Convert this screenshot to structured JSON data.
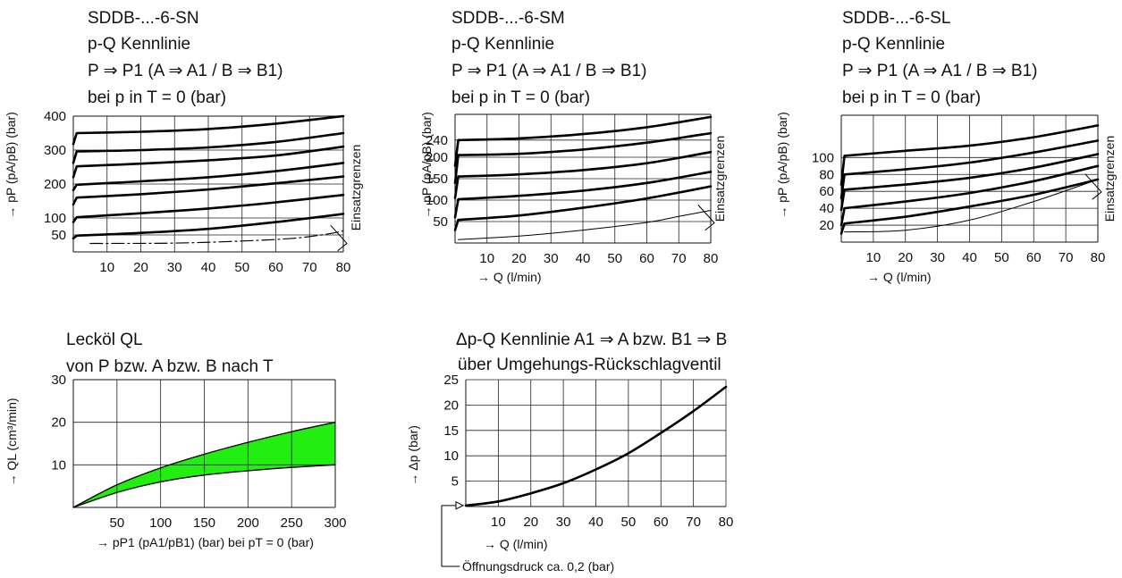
{
  "chart_data": [
    {
      "id": "sn",
      "type": "line",
      "title_lines": [
        "SDDB-...-6-SN",
        "p-Q Kennlinie",
        "P ⇒ P1 (A ⇒ A1 / B ⇒ B1)",
        "bei p in T = 0 (bar)"
      ],
      "xlabel": "",
      "ylabel": "→ pP (pA/pB) (bar)",
      "right_label": "Einsatzgrenzen",
      "xlim": [
        0,
        80
      ],
      "ylim": [
        0,
        400
      ],
      "x_ticks": [
        10,
        20,
        30,
        40,
        50,
        60,
        70,
        80
      ],
      "y_ticks": [
        50,
        100,
        200,
        300,
        400
      ],
      "grid": true,
      "series": [
        {
          "x": [
            0,
            1,
            20,
            40,
            60,
            80
          ],
          "y": [
            40,
            48,
            56,
            68,
            88,
            112
          ]
        },
        {
          "x": [
            0,
            1,
            20,
            40,
            60,
            80
          ],
          "y": [
            88,
            102,
            114,
            128,
            146,
            168
          ]
        },
        {
          "x": [
            0,
            1,
            20,
            40,
            60,
            80
          ],
          "y": [
            140,
            160,
            170,
            184,
            202,
            222
          ]
        },
        {
          "x": [
            0,
            1,
            20,
            40,
            60,
            80
          ],
          "y": [
            182,
            198,
            208,
            220,
            238,
            262
          ]
        },
        {
          "x": [
            0,
            1,
            20,
            40,
            60,
            80
          ],
          "y": [
            220,
            252,
            260,
            270,
            284,
            310
          ]
        },
        {
          "x": [
            0,
            1,
            20,
            40,
            60,
            80
          ],
          "y": [
            262,
            296,
            300,
            308,
            324,
            350
          ]
        },
        {
          "x": [
            0,
            1,
            20,
            40,
            60,
            80
          ],
          "y": [
            318,
            350,
            354,
            362,
            378,
            400
          ]
        }
      ],
      "limit_curve": {
        "x": [
          5,
          30,
          50,
          65,
          75,
          80
        ],
        "y": [
          25,
          26,
          32,
          40,
          52,
          62
        ]
      }
    },
    {
      "id": "sm",
      "type": "line",
      "title_lines": [
        "SDDB-...-6-SM",
        "p-Q Kennlinie",
        "P ⇒ P1 (A ⇒ A1 / B ⇒ B1)",
        "bei p in T = 0 (bar)"
      ],
      "xlabel": "→ Q (l/min)",
      "ylabel": "→ pP (pA/pB) (bar)",
      "right_label": "Einsatzgrenzen",
      "xlim": [
        0,
        80
      ],
      "ylim": [
        0,
        300
      ],
      "x_ticks": [
        10,
        20,
        30,
        40,
        50,
        60,
        70,
        80
      ],
      "y_ticks": [
        50,
        100,
        150,
        200,
        240
      ],
      "grid": true,
      "series": [
        {
          "x": [
            0,
            1,
            20,
            40,
            60,
            80
          ],
          "y": [
            30,
            54,
            64,
            82,
            104,
            132
          ]
        },
        {
          "x": [
            0,
            1,
            20,
            40,
            60,
            80
          ],
          "y": [
            60,
            102,
            110,
            122,
            140,
            166
          ]
        },
        {
          "x": [
            0,
            1,
            20,
            40,
            60,
            80
          ],
          "y": [
            105,
            155,
            160,
            170,
            186,
            212
          ]
        },
        {
          "x": [
            0,
            1,
            20,
            40,
            60,
            80
          ],
          "y": [
            140,
            205,
            208,
            218,
            234,
            256
          ]
        },
        {
          "x": [
            0,
            1,
            20,
            40,
            60,
            80
          ],
          "y": [
            180,
            240,
            244,
            254,
            270,
            294
          ]
        }
      ],
      "limit_curve": {
        "x": [
          1,
          20,
          40,
          60,
          70,
          80
        ],
        "y": [
          8,
          16,
          30,
          48,
          62,
          76
        ]
      }
    },
    {
      "id": "sl",
      "type": "line",
      "title_lines": [
        "SDDB-...-6-SL",
        "p-Q Kennlinie",
        "P ⇒ P1 (A ⇒ A1 / B ⇒ B1)",
        "bei p in T = 0 (bar)"
      ],
      "xlabel": "→ Q (l/min)",
      "ylabel": "→ pP (pA/pB) (bar)",
      "right_label": "Einsatzgrenzen",
      "xlim": [
        0,
        80
      ],
      "ylim": [
        0,
        150
      ],
      "x_ticks": [
        10,
        20,
        30,
        40,
        50,
        60,
        70,
        80
      ],
      "y_ticks": [
        20,
        40,
        60,
        80,
        100
      ],
      "grid": true,
      "series": [
        {
          "x": [
            0,
            1,
            20,
            40,
            60,
            80
          ],
          "y": [
            10,
            22,
            30,
            42,
            56,
            74
          ]
        },
        {
          "x": [
            0,
            1,
            20,
            40,
            60,
            80
          ],
          "y": [
            20,
            40,
            48,
            58,
            72,
            90
          ]
        },
        {
          "x": [
            0,
            1,
            20,
            40,
            60,
            80
          ],
          "y": [
            38,
            62,
            68,
            76,
            88,
            104
          ]
        },
        {
          "x": [
            0,
            1,
            20,
            40,
            60,
            80
          ],
          "y": [
            52,
            80,
            86,
            94,
            106,
            120
          ]
        },
        {
          "x": [
            0,
            1,
            20,
            40,
            60,
            80
          ],
          "y": [
            68,
            102,
            108,
            114,
            124,
            138
          ]
        }
      ],
      "limit_curve": {
        "x": [
          1,
          20,
          40,
          60,
          80
        ],
        "y": [
          12,
          14,
          26,
          48,
          74
        ]
      }
    },
    {
      "id": "leakage",
      "type": "area",
      "title_lines": [
        "Lecköl QL",
        "von P bzw. A bzw. B nach T"
      ],
      "xlabel": "→ pP1 (pA1/pB1) (bar) bei pT = 0 (bar)",
      "ylabel": "→ QL (cm³/min)",
      "xlim": [
        0,
        300
      ],
      "ylim": [
        0,
        30
      ],
      "x_ticks": [
        50,
        100,
        150,
        200,
        250,
        300
      ],
      "y_ticks": [
        10,
        20,
        30
      ],
      "grid": true,
      "fill_color": "#22ee11",
      "upper": {
        "x": [
          0,
          50,
          100,
          150,
          200,
          250,
          300
        ],
        "y": [
          0,
          5.3,
          9.3,
          12.5,
          15.3,
          17.8,
          20
        ]
      },
      "lower": {
        "x": [
          0,
          50,
          100,
          150,
          200,
          250,
          300
        ],
        "y": [
          0,
          3.5,
          6.0,
          7.6,
          8.6,
          9.4,
          10
        ]
      }
    },
    {
      "id": "dp",
      "type": "line",
      "title_lines": [
        "Δp-Q Kennlinie A1 ⇒ A bzw. B1 ⇒ B",
        "über  Umgehungs-Rückschlagventil"
      ],
      "xlabel": "→ Q (l/min)",
      "ylabel": "→ Δp (bar)",
      "xlim": [
        0,
        80
      ],
      "ylim": [
        0,
        25
      ],
      "x_ticks": [
        10,
        20,
        30,
        40,
        50,
        60,
        70,
        80
      ],
      "y_ticks": [
        5,
        10,
        15,
        20,
        25
      ],
      "grid": true,
      "series": [
        {
          "x": [
            0,
            10,
            20,
            30,
            40,
            50,
            60,
            70,
            80
          ],
          "y": [
            0.2,
            1.0,
            2.6,
            4.6,
            7.3,
            10.5,
            14.5,
            18.8,
            23.6
          ]
        }
      ],
      "annotation": "Öffnungsdruck ca. 0,2 (bar)"
    }
  ]
}
